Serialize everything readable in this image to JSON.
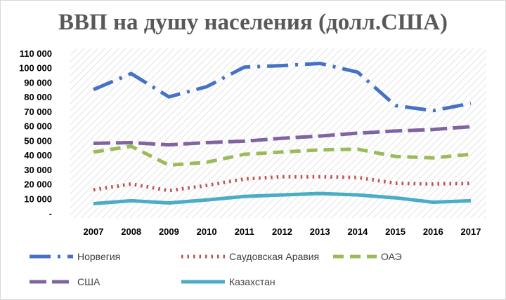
{
  "chart_data": {
    "type": "line",
    "title": "ВВП на душу населения (долл.США)",
    "categories": [
      "2007",
      "2008",
      "2009",
      "2010",
      "2011",
      "2012",
      "2013",
      "2014",
      "2015",
      "2016",
      "2017"
    ],
    "y_ticks": [
      "-",
      "10 000",
      "20 000",
      "30 000",
      "40 000",
      "50 000",
      "60 000",
      "70 000",
      "80 000",
      "90 000",
      "100 000",
      "110 000"
    ],
    "ylim": [
      0,
      110000
    ],
    "grid": false,
    "legend_position": "bottom",
    "series": [
      {
        "name": "Норвегия",
        "color": "#4472C4",
        "dash": "long-dash-dot",
        "values": [
          85000,
          96000,
          80000,
          87000,
          100500,
          101500,
          103000,
          97000,
          74000,
          70500,
          75500
        ]
      },
      {
        "name": "Саудовская Аравия",
        "color": "#C0504D",
        "dash": "dot",
        "values": [
          16000,
          20000,
          15500,
          19000,
          23500,
          25000,
          25000,
          24500,
          20500,
          20000,
          20500
        ]
      },
      {
        "name": "ОАЭ",
        "color": "#9BBB59",
        "dash": "dash",
        "values": [
          42000,
          46000,
          33000,
          35000,
          40500,
          42000,
          43500,
          44000,
          39000,
          38000,
          40500
        ]
      },
      {
        "name": "США",
        "color": "#8064A2",
        "dash": "long-dash",
        "values": [
          48000,
          48500,
          47000,
          48500,
          49500,
          51500,
          53000,
          55000,
          56500,
          57500,
          59500
        ]
      },
      {
        "name": "Казахстан",
        "color": "#4BACC6",
        "dash": "solid",
        "values": [
          6500,
          8500,
          7000,
          9000,
          11500,
          12500,
          13500,
          12500,
          10500,
          7500,
          8500
        ]
      }
    ]
  }
}
